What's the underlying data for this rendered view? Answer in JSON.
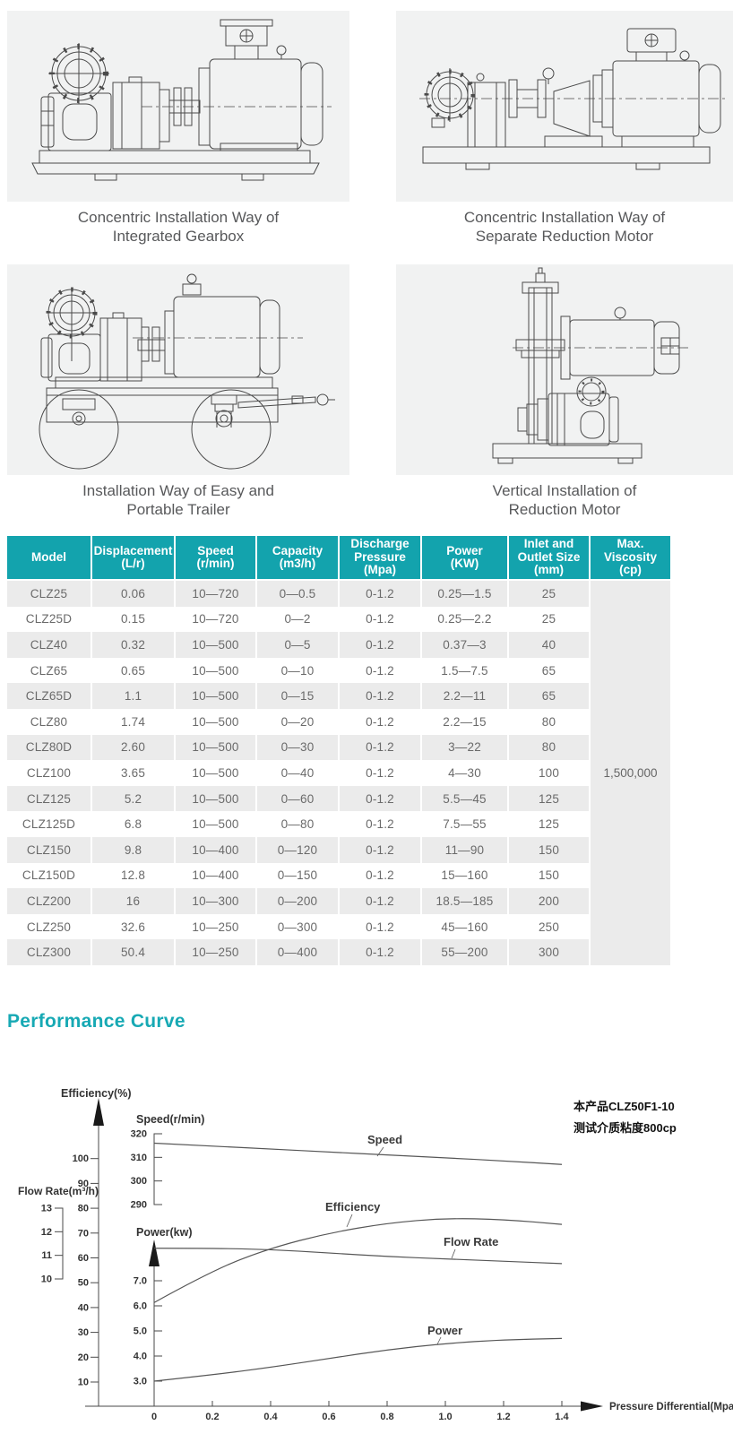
{
  "colors": {
    "header_bg": "#13a3ad",
    "accent": "#17a9b4",
    "row_alt_bg": "#ebebeb",
    "panel_bg": "#f1f2f2"
  },
  "installations": [
    {
      "caption": "Concentric Installation Way of\nIntegrated Gearbox"
    },
    {
      "caption": "Concentric Installation Way of\nSeparate Reduction Motor"
    },
    {
      "caption": "Installation Way of Easy and\nPortable Trailer"
    },
    {
      "caption": "Vertical Installation of\nReduction Motor"
    }
  ],
  "table": {
    "headers": [
      "Model",
      "Displacement\n(L/r)",
      "Speed\n(r/min)",
      "Capacity\n(m3/h)",
      "Discharge\nPressure\n(Mpa)",
      "Power\n(KW)",
      "Inlet and\nOutlet Size\n(mm)",
      "Max. Viscosity\n(cp)"
    ],
    "merged_viscosity": "1,500,000",
    "rows": [
      [
        "CLZ25",
        "0.06",
        "10—720",
        "0—0.5",
        "0-1.2",
        "0.25—1.5",
        "25"
      ],
      [
        "CLZ25D",
        "0.15",
        "10—720",
        "0—2",
        "0-1.2",
        "0.25—2.2",
        "25"
      ],
      [
        "CLZ40",
        "0.32",
        "10—500",
        "0—5",
        "0-1.2",
        "0.37—3",
        "40"
      ],
      [
        "CLZ65",
        "0.65",
        "10—500",
        "0—10",
        "0-1.2",
        "1.5—7.5",
        "65"
      ],
      [
        "CLZ65D",
        "1.1",
        "10—500",
        "0—15",
        "0-1.2",
        "2.2—11",
        "65"
      ],
      [
        "CLZ80",
        "1.74",
        "10—500",
        "0—20",
        "0-1.2",
        "2.2—15",
        "80"
      ],
      [
        "CLZ80D",
        "2.60",
        "10—500",
        "0—30",
        "0-1.2",
        "3—22",
        "80"
      ],
      [
        "CLZ100",
        "3.65",
        "10—500",
        "0—40",
        "0-1.2",
        "4—30",
        "100"
      ],
      [
        "CLZ125",
        "5.2",
        "10—500",
        "0—60",
        "0-1.2",
        "5.5—45",
        "125"
      ],
      [
        "CLZ125D",
        "6.8",
        "10—500",
        "0—80",
        "0-1.2",
        "7.5—55",
        "125"
      ],
      [
        "CLZ150",
        "9.8",
        "10—400",
        "0—120",
        "0-1.2",
        "11—90",
        "150"
      ],
      [
        "CLZ150D",
        "12.8",
        "10—400",
        "0—150",
        "0-1.2",
        "15—160",
        "150"
      ],
      [
        "CLZ200",
        "16",
        "10—300",
        "0—200",
        "0-1.2",
        "18.5—185",
        "200"
      ],
      [
        "CLZ250",
        "32.6",
        "10—250",
        "0—300",
        "0-1.2",
        "45—160",
        "250"
      ],
      [
        "CLZ300",
        "50.4",
        "10—250",
        "0—400",
        "0-1.2",
        "55—200",
        "300"
      ]
    ]
  },
  "performance": {
    "title": "Performance Curve"
  },
  "chart_data": {
    "type": "line",
    "x": [
      0,
      0.2,
      0.4,
      0.6,
      0.8,
      1.0,
      1.2,
      1.4
    ],
    "x_ticks": [
      "0",
      "0.2",
      "0.4",
      "0.6",
      "0.8",
      "1.0",
      "1.2",
      "1.4"
    ],
    "xlabel": "Pressure Differential(Mpa)",
    "annotation": [
      "本产品CLZ50F1-10",
      "测试介质粘度800cp"
    ],
    "axes": {
      "efficiency": {
        "label": "Efficiency(%)",
        "ticks": [
          "100",
          "90",
          "80",
          "70",
          "60",
          "50",
          "40",
          "30",
          "20",
          "10"
        ],
        "range": [
          10,
          100
        ]
      },
      "speed": {
        "label": "Speed(r/min)",
        "ticks": [
          "320",
          "310",
          "300",
          "290"
        ],
        "range": [
          290,
          320
        ]
      },
      "flow": {
        "label": "Flow Rate(m³/h)",
        "ticks": [
          "13",
          "12",
          "11",
          "10"
        ],
        "range": [
          10,
          13
        ]
      },
      "power": {
        "label": "Power(kw)",
        "ticks": [
          "7.0",
          "6.0",
          "5.0",
          "4.0",
          "3.0"
        ],
        "range": [
          3,
          7
        ]
      }
    },
    "series": [
      {
        "name": "Speed",
        "axis": "speed",
        "values": [
          316,
          314.8,
          313.5,
          312.3,
          311,
          309.8,
          308.5,
          307
        ]
      },
      {
        "name": "Efficiency",
        "axis": "efficiency",
        "values": [
          42,
          55,
          64,
          70,
          74,
          76,
          75.5,
          73.5
        ]
      },
      {
        "name": "Flow Rate",
        "axis": "flow",
        "values": [
          11.3,
          11.3,
          11.25,
          11.1,
          10.95,
          10.85,
          10.75,
          10.65
        ]
      },
      {
        "name": "Power",
        "axis": "power",
        "values": [
          3.0,
          3.25,
          3.55,
          3.9,
          4.25,
          4.5,
          4.65,
          4.7
        ]
      }
    ]
  }
}
